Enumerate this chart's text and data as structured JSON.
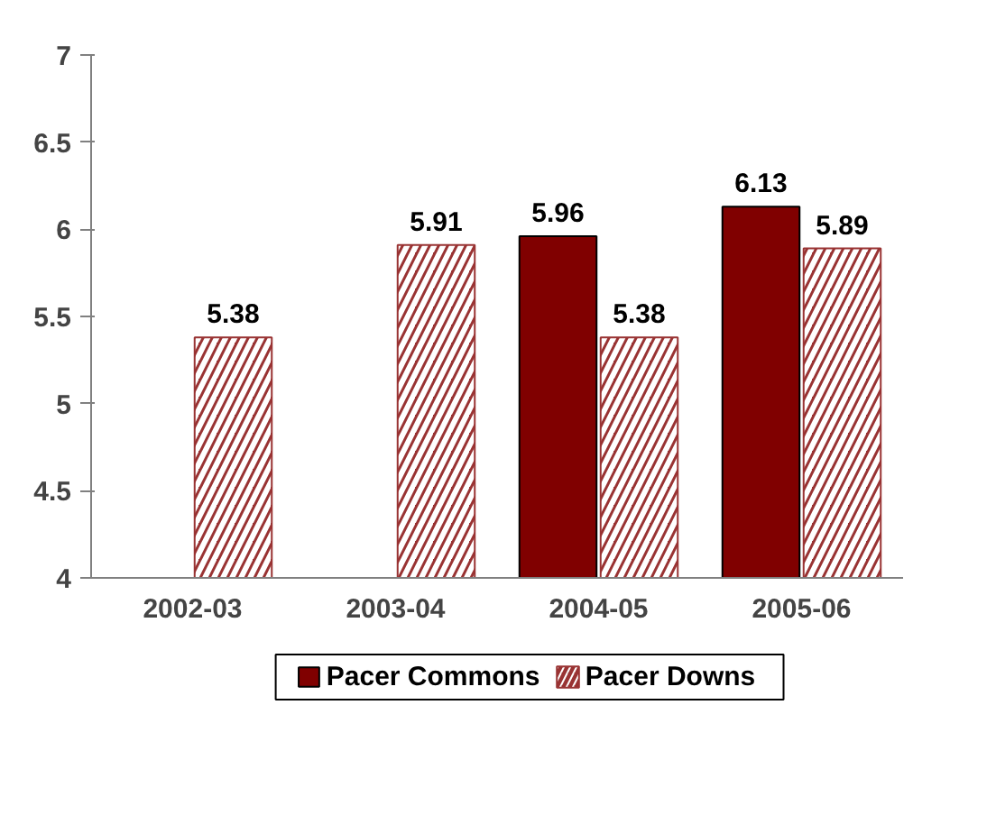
{
  "chart_data": {
    "type": "bar",
    "categories": [
      "2002-03",
      "2003-04",
      "2004-05",
      "2005-06"
    ],
    "series": [
      {
        "name": "Pacer Commons",
        "color": "#800000",
        "values": [
          null,
          null,
          5.96,
          6.13
        ]
      },
      {
        "name": "Pacer Downs",
        "color": "#993333",
        "values": [
          5.38,
          5.91,
          5.38,
          5.89
        ]
      }
    ],
    "ylim": [
      4,
      7
    ],
    "yticks": [
      4,
      {
        "value": 4.5,
        "label": "4.5"
      },
      5,
      {
        "value": 5.5,
        "label": "5.5"
      },
      6,
      {
        "value": 6.5,
        "label": "6.5"
      },
      7
    ],
    "data_labels": true,
    "legend": "bottom",
    "grid": false
  }
}
